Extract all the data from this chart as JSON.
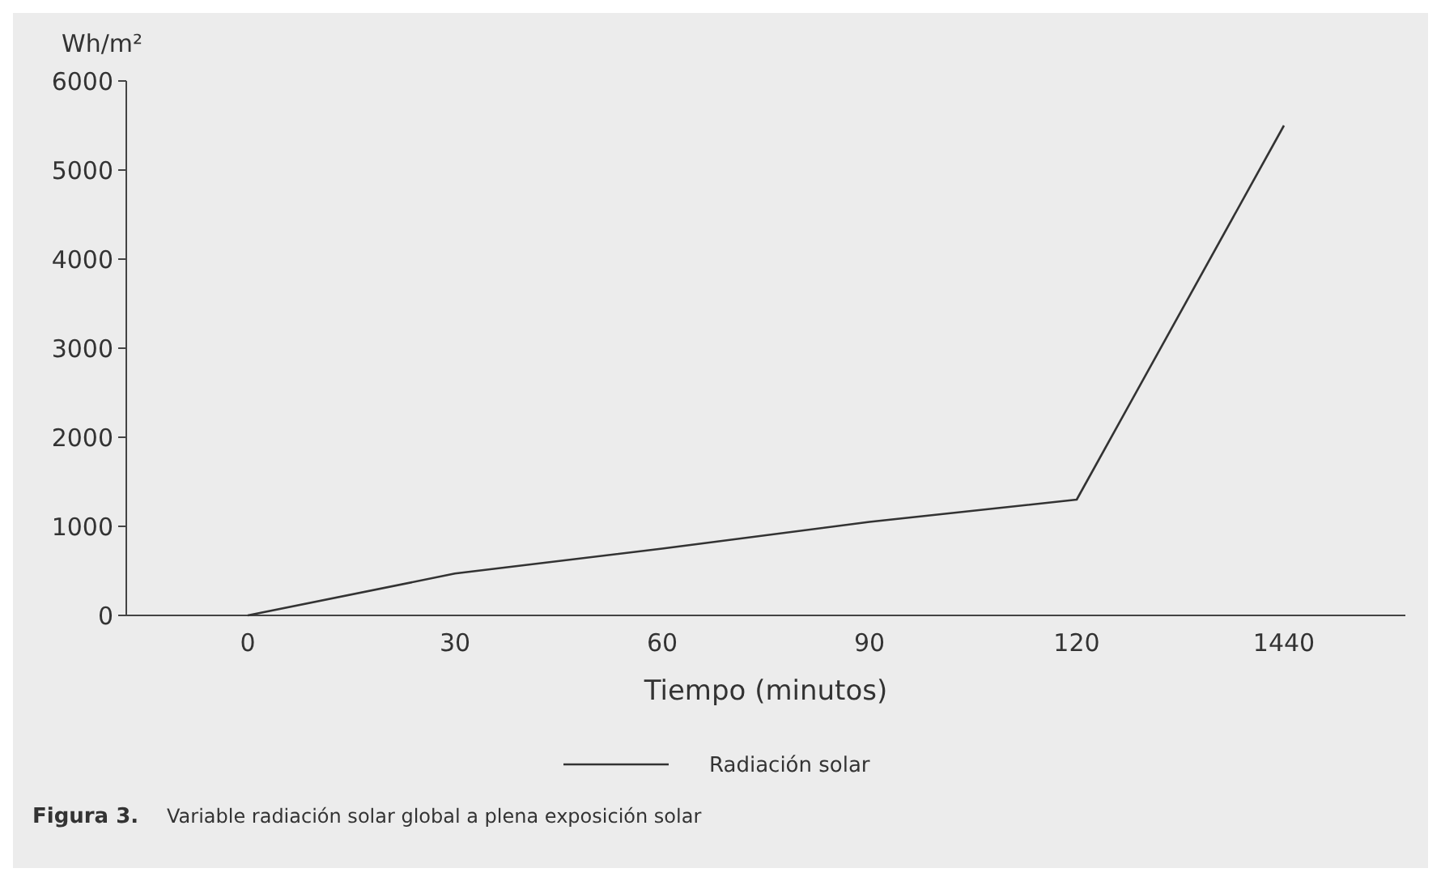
{
  "chart_data": {
    "type": "line",
    "ylabel": "Wh/m²",
    "xlabel": "Tiempo (minutos)",
    "categories": [
      "0",
      "30",
      "60",
      "90",
      "120",
      "1440"
    ],
    "series": [
      {
        "name": "Radiación solar",
        "color": "#333333",
        "values": [
          0,
          470,
          750,
          1050,
          1300,
          5500
        ]
      }
    ],
    "ylim": [
      0,
      6000
    ],
    "yticks": [
      0,
      1000,
      2000,
      3000,
      4000,
      5000,
      6000
    ],
    "grid": false,
    "legend": "bottom",
    "marker": "none",
    "line_style": "solid",
    "annotations": [
      "Figura 3.",
      "Variable radiación solar global a plena exposición solar"
    ]
  }
}
